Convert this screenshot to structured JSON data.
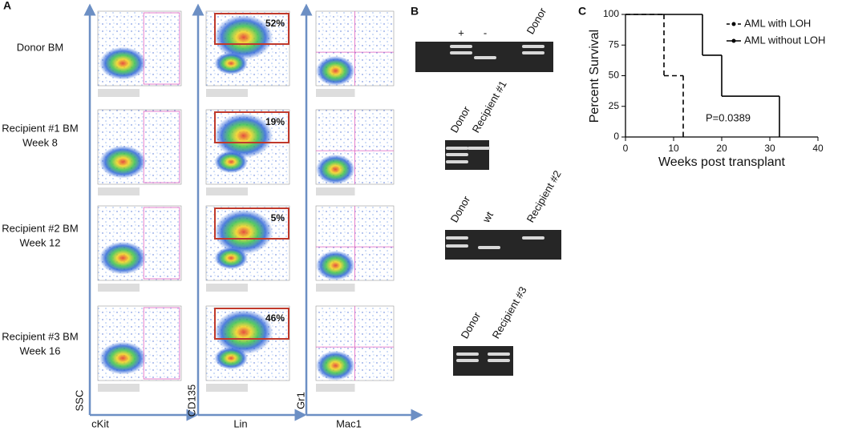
{
  "panel_a": {
    "label": "A",
    "rows": [
      {
        "name": "Donor BM",
        "percent": "52%"
      },
      {
        "name": "Recipient #1 BM",
        "time": "Week 8",
        "percent": "19%"
      },
      {
        "name": "Recipient #2 BM",
        "time": "Week 12",
        "percent": "5%"
      },
      {
        "name": "Recipient #3 BM",
        "time": "Week 16",
        "percent": "46%"
      }
    ],
    "columns": [
      {
        "y_axis": "SSC",
        "x_axis": "cKit"
      },
      {
        "y_axis": "CD135",
        "x_axis": "Lin"
      },
      {
        "y_axis": "Gr1",
        "x_axis": "Mac1"
      }
    ]
  },
  "panel_b": {
    "label": "B",
    "gels": [
      {
        "lanes": [
          "+",
          "-",
          "Donor"
        ]
      },
      {
        "lanes": [
          "Donor",
          "Recipient #1"
        ]
      },
      {
        "lanes": [
          "Donor",
          "wt",
          "Recipient #2"
        ]
      },
      {
        "lanes": [
          "Donor",
          "Recipient #3"
        ]
      }
    ]
  },
  "chart_data": {
    "type": "step",
    "panel_label": "C",
    "xlabel": "Weeks post transplant",
    "ylabel": "Percent Survival",
    "annotation": "P=0.0389",
    "xlim": [
      0,
      40
    ],
    "xticks": [
      0,
      10,
      20,
      30,
      40
    ],
    "ylim": [
      0,
      100
    ],
    "yticks": [
      0,
      25,
      50,
      75,
      100
    ],
    "legend": "top-right",
    "series": [
      {
        "name": "AML with LOH",
        "color": "#000000",
        "dash": true,
        "x": [
          0,
          8,
          12
        ],
        "values": [
          100,
          50,
          0
        ]
      },
      {
        "name": "AML without LOH",
        "color": "#000000",
        "dash": false,
        "x": [
          0,
          16,
          20,
          32
        ],
        "values": [
          100,
          66.7,
          33.3,
          0
        ]
      }
    ]
  }
}
